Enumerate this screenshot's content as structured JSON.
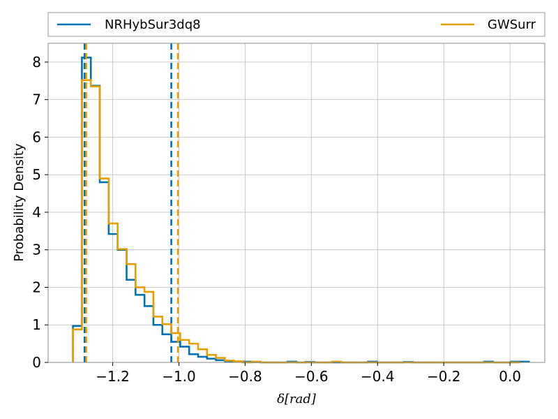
{
  "chart_data": {
    "type": "histogram",
    "xlabel": "δ[rad]",
    "ylabel": "Probability Density",
    "xlim": [
      -1.395,
      0.105
    ],
    "ylim": [
      0,
      8.5
    ],
    "xticks": [
      -1.2,
      -1.0,
      -0.8,
      -0.6,
      -0.4,
      -0.2,
      0.0
    ],
    "xtick_labels": [
      "−1.2",
      "−1.0",
      "−0.8",
      "−0.6",
      "−0.4",
      "−0.2",
      "0.0"
    ],
    "yticks": [
      0,
      1,
      2,
      3,
      4,
      5,
      6,
      7,
      8
    ],
    "ytick_labels": [
      "0",
      "1",
      "2",
      "3",
      "4",
      "5",
      "6",
      "7",
      "8"
    ],
    "grid": true,
    "legend_position": "top",
    "series": [
      {
        "name": "NRHybSur3dq8",
        "color": "#0072b2",
        "bin_edges": [
          -1.32,
          -1.293,
          -1.266,
          -1.239,
          -1.212,
          -1.185,
          -1.158,
          -1.131,
          -1.104,
          -1.077,
          -1.05,
          -1.023,
          -0.996,
          -0.969,
          -0.942,
          -0.915,
          -0.888,
          -0.861,
          -0.834,
          -0.807,
          -0.78,
          -0.753,
          -0.726,
          -0.699,
          -0.672,
          -0.645,
          -0.618,
          -0.591,
          -0.564,
          -0.537,
          -0.51,
          -0.483,
          -0.456,
          -0.429,
          -0.402,
          -0.375,
          -0.348,
          -0.321,
          -0.294,
          -0.267,
          -0.24,
          -0.213,
          -0.186,
          -0.159,
          -0.132,
          -0.105,
          -0.078,
          -0.051,
          -0.024,
          0.003,
          0.03,
          0.057
        ],
        "densities": [
          0.97,
          8.12,
          7.37,
          4.8,
          3.42,
          3.0,
          2.2,
          1.8,
          1.5,
          1.0,
          0.75,
          0.55,
          0.42,
          0.22,
          0.15,
          0.1,
          0.06,
          0.03,
          0.02,
          0.02,
          0.01,
          0.0,
          0.0,
          0.0,
          0.02,
          0.0,
          0.01,
          0.0,
          0.0,
          0.0,
          0.0,
          0.0,
          0.0,
          0.02,
          0.0,
          0.0,
          0.0,
          0.01,
          0.0,
          0.0,
          0.0,
          0.0,
          0.0,
          0.0,
          0.0,
          0.0,
          0.02,
          0.0,
          0.0,
          0.02,
          0.02
        ],
        "vlines": [
          -1.285,
          -1.023
        ]
      },
      {
        "name": "GWSurr",
        "color": "#e69f00",
        "bin_edges": [
          -1.32,
          -1.293,
          -1.266,
          -1.239,
          -1.212,
          -1.185,
          -1.158,
          -1.131,
          -1.104,
          -1.077,
          -1.05,
          -1.023,
          -0.996,
          -0.969,
          -0.942,
          -0.915,
          -0.888,
          -0.861,
          -0.834,
          -0.807,
          -0.78,
          -0.753,
          -0.726,
          -0.699,
          -0.672,
          -0.645,
          -0.618,
          -0.591,
          -0.564,
          -0.537,
          -0.51,
          -0.483,
          -0.456,
          -0.429,
          -0.402,
          -0.375,
          -0.348,
          -0.321,
          -0.294,
          -0.267,
          -0.24,
          -0.213,
          -0.186,
          -0.159,
          -0.132,
          -0.105,
          -0.078,
          -0.051,
          -0.024,
          0.003,
          0.03
        ],
        "densities": [
          0.88,
          7.52,
          7.35,
          4.9,
          3.7,
          3.02,
          2.62,
          2.0,
          1.88,
          1.22,
          1.02,
          0.78,
          0.6,
          0.5,
          0.35,
          0.2,
          0.12,
          0.05,
          0.03,
          0.0,
          0.02,
          0.0,
          0.0,
          0.0,
          0.0,
          0.0,
          0.0,
          0.0,
          0.0,
          0.02,
          0.0,
          0.0,
          0.0,
          0.0,
          0.0,
          0.0,
          0.0,
          0.0,
          0.0,
          0.0,
          0.0,
          0.0,
          0.0,
          0.0,
          0.0,
          0.0,
          0.0,
          0.0,
          0.0,
          0.0
        ],
        "vlines": [
          -1.28,
          -1.003
        ]
      }
    ]
  }
}
